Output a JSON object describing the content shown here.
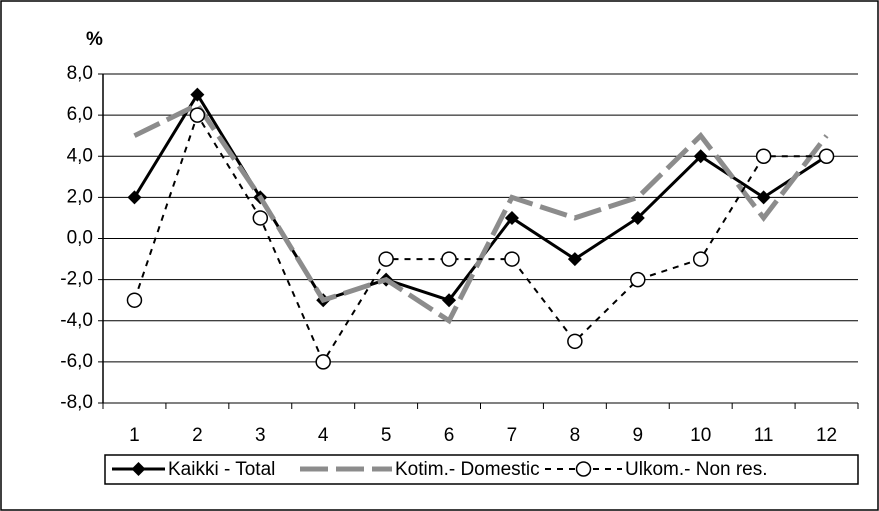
{
  "chart_data": {
    "type": "line",
    "ylabel": "%",
    "categories": [
      "1",
      "2",
      "3",
      "4",
      "5",
      "6",
      "7",
      "8",
      "9",
      "10",
      "11",
      "12"
    ],
    "series": [
      {
        "name": "Kaikki - Total",
        "color": "#000000",
        "values": [
          2,
          7,
          2,
          -3,
          -2,
          -3,
          1,
          -1,
          1,
          4,
          2,
          4
        ]
      },
      {
        "name": "Kotim.- Domestic",
        "color": "#8c8c8c",
        "values": [
          5,
          6.5,
          2,
          -3,
          -2,
          -4,
          2,
          1,
          2,
          5,
          1,
          5
        ]
      },
      {
        "name": "Ulkom.- Non res.",
        "color": "#000000",
        "values": [
          -3,
          6,
          1,
          -6,
          -1,
          -1,
          -1,
          -5,
          -2,
          -1,
          4,
          4
        ]
      }
    ],
    "ylim": [
      -8,
      8
    ],
    "yticks": [
      {
        "value": -8,
        "label": "-8,0"
      },
      {
        "value": -6,
        "label": "-6,0"
      },
      {
        "value": -4,
        "label": "-4,0"
      },
      {
        "value": -2,
        "label": "-2,0"
      },
      {
        "value": 0,
        "label": "0,0"
      },
      {
        "value": 2,
        "label": "2,0"
      },
      {
        "value": 4,
        "label": "4,0"
      },
      {
        "value": 6,
        "label": "6,0"
      },
      {
        "value": 8,
        "label": "8,0"
      }
    ],
    "grid": true,
    "legend": "bottom"
  }
}
